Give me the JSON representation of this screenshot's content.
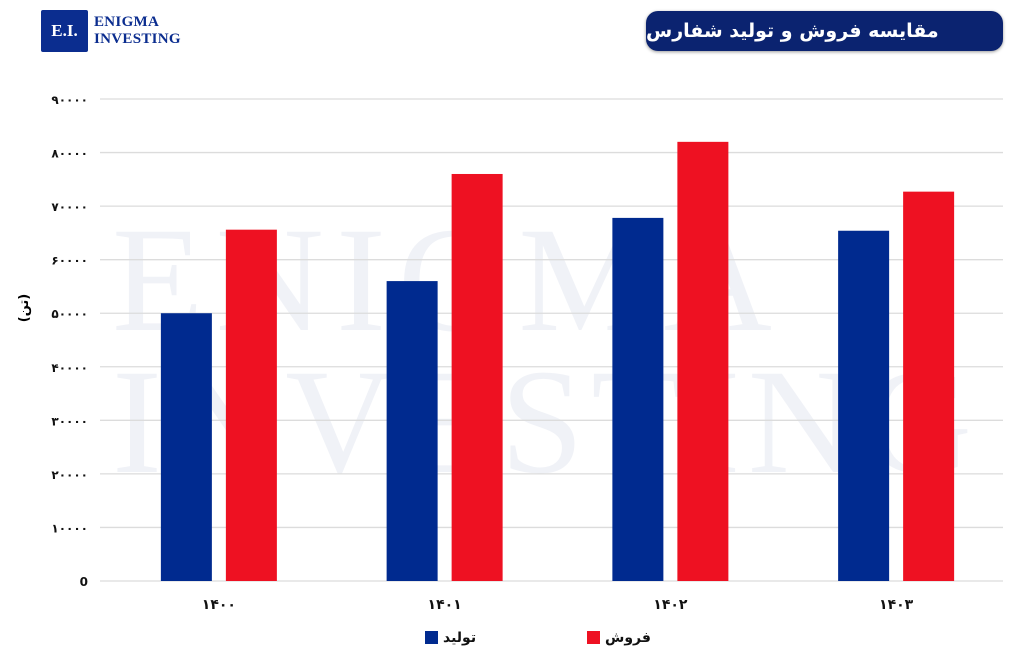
{
  "logo": {
    "mark": "E.I.",
    "line1": "Enigma",
    "line2": "Investing"
  },
  "watermark": {
    "line1": "ENIGMA",
    "line2": "INVESTING"
  },
  "chart_data": {
    "type": "bar",
    "title": "مقایسه فروش و تولید شفارس",
    "ylabel": "(تن)",
    "xlabel": "",
    "categories": [
      "۱۴۰۰",
      "۱۴۰۱",
      "۱۴۰۲",
      "۱۴۰۳"
    ],
    "ylim": [
      0,
      90000
    ],
    "yticks": [
      0,
      10000,
      20000,
      30000,
      40000,
      50000,
      60000,
      70000,
      80000,
      90000
    ],
    "ytick_labels": [
      "0",
      "۱۰۰۰۰",
      "۲۰۰۰۰",
      "۳۰۰۰۰",
      "۴۰۰۰۰",
      "۵۰۰۰۰",
      "۶۰۰۰۰",
      "۷۰۰۰۰",
      "۸۰۰۰۰",
      "۹۰۰۰۰"
    ],
    "grid": true,
    "legend_position": "bottom",
    "series": [
      {
        "name": "تولید",
        "color": "#002a8f",
        "values": [
          50000,
          56000,
          67800,
          65400
        ]
      },
      {
        "name": "فروش",
        "color": "#ee1122",
        "values": [
          65600,
          76000,
          82000,
          72700
        ]
      }
    ]
  }
}
